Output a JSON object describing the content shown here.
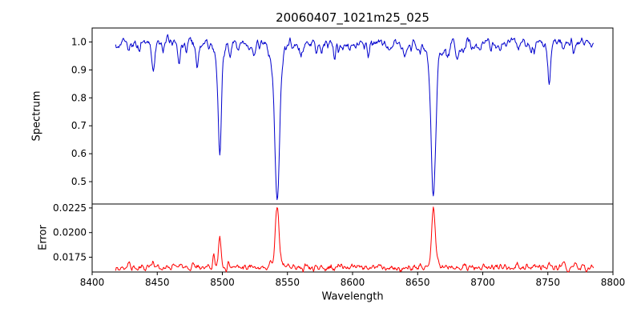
{
  "title": "20060407_1021m25_025",
  "chart_data": {
    "type": "line",
    "title": "20060407_1021m25_025",
    "xlabel": "Wavelength",
    "x_range_axis": [
      8400,
      8800
    ],
    "x_range_data": [
      8418,
      8785
    ],
    "x_step": 0.5,
    "noise_seed": 42,
    "xticks": [
      8400,
      8450,
      8500,
      8550,
      8600,
      8650,
      8700,
      8750,
      8800
    ],
    "xtick_labels": [
      "8400",
      "8450",
      "8500",
      "8550",
      "8600",
      "8650",
      "8700",
      "8750",
      "8800"
    ],
    "panels": [
      {
        "name": "spectrum",
        "ylabel": "Spectrum",
        "ylim": [
          0.42,
          1.05
        ],
        "yticks": [
          0.5,
          0.6,
          0.7,
          0.8,
          0.9,
          1.0
        ],
        "ytick_labels": [
          "0.5",
          "0.6",
          "0.7",
          "0.8",
          "0.9",
          "1.0"
        ],
        "color": "#0000cd",
        "continuum": 1.0,
        "noise_amp": 0.028,
        "absorption_lines": [
          {
            "center": 8498.0,
            "depth": 0.355,
            "width": 1.2,
            "wing_depth": 0.045,
            "wing_width": 3.5
          },
          {
            "center": 8542.1,
            "depth": 0.5,
            "width": 1.8,
            "wing_depth": 0.06,
            "wing_width": 5.5
          },
          {
            "center": 8662.1,
            "depth": 0.48,
            "width": 1.7,
            "wing_depth": 0.065,
            "wing_width": 5.0
          }
        ],
        "minor_lines": [
          {
            "center": 8428,
            "depth": 0.035,
            "width": 0.8
          },
          {
            "center": 8447,
            "depth": 0.09,
            "width": 1.0
          },
          {
            "center": 8467,
            "depth": 0.065,
            "width": 0.9
          },
          {
            "center": 8481,
            "depth": 0.045,
            "width": 0.8
          },
          {
            "center": 8506,
            "depth": 0.05,
            "width": 0.8
          },
          {
            "center": 8512,
            "depth": 0.035,
            "width": 0.7
          },
          {
            "center": 8524,
            "depth": 0.045,
            "width": 0.8
          },
          {
            "center": 8560,
            "depth": 0.04,
            "width": 0.8
          },
          {
            "center": 8572,
            "depth": 0.03,
            "width": 0.7
          },
          {
            "center": 8586,
            "depth": 0.045,
            "width": 0.9
          },
          {
            "center": 8612,
            "depth": 0.03,
            "width": 0.7
          },
          {
            "center": 8626,
            "depth": 0.03,
            "width": 0.7
          },
          {
            "center": 8640,
            "depth": 0.035,
            "width": 0.8
          },
          {
            "center": 8652,
            "depth": 0.03,
            "width": 0.6
          },
          {
            "center": 8680,
            "depth": 0.045,
            "width": 0.9
          },
          {
            "center": 8713,
            "depth": 0.03,
            "width": 0.7
          },
          {
            "center": 8727,
            "depth": 0.035,
            "width": 0.8
          },
          {
            "center": 8751,
            "depth": 0.135,
            "width": 1.1
          },
          {
            "center": 8770,
            "depth": 0.04,
            "width": 0.8
          }
        ]
      },
      {
        "name": "error",
        "ylabel": "Error",
        "ylim": [
          0.016,
          0.0229
        ],
        "yticks": [
          0.0175,
          0.02,
          0.0225
        ],
        "ytick_labels": [
          "0.0175",
          "0.0200",
          "0.0225"
        ],
        "color": "#ff0000",
        "baseline": 0.01645,
        "noise_amp": 0.0006,
        "peaks": [
          {
            "center": 8428.0,
            "height": 0.0005,
            "width": 0.8
          },
          {
            "center": 8447.0,
            "height": 0.0005,
            "width": 0.8
          },
          {
            "center": 8467.0,
            "height": 0.0004,
            "width": 0.8
          },
          {
            "center": 8493.5,
            "height": 0.0012,
            "width": 0.8
          },
          {
            "center": 8498.0,
            "height": 0.0029,
            "width": 1.0
          },
          {
            "center": 8505.0,
            "height": 0.0006,
            "width": 0.8
          },
          {
            "center": 8512.0,
            "height": 0.0004,
            "width": 0.7
          },
          {
            "center": 8542.1,
            "height": 0.0054,
            "width": 1.3,
            "wing_height": 0.0008,
            "wing_width": 4.0
          },
          {
            "center": 8662.1,
            "height": 0.0052,
            "width": 1.3,
            "wing_height": 0.0007,
            "wing_width": 3.5
          },
          {
            "center": 8727.0,
            "height": 0.0004,
            "width": 0.7
          },
          {
            "center": 8751.0,
            "height": 0.0006,
            "width": 0.9
          },
          {
            "center": 8762.0,
            "height": 0.0005,
            "width": 0.8
          },
          {
            "center": 8771.0,
            "height": 0.0007,
            "width": 0.9
          }
        ]
      }
    ]
  }
}
